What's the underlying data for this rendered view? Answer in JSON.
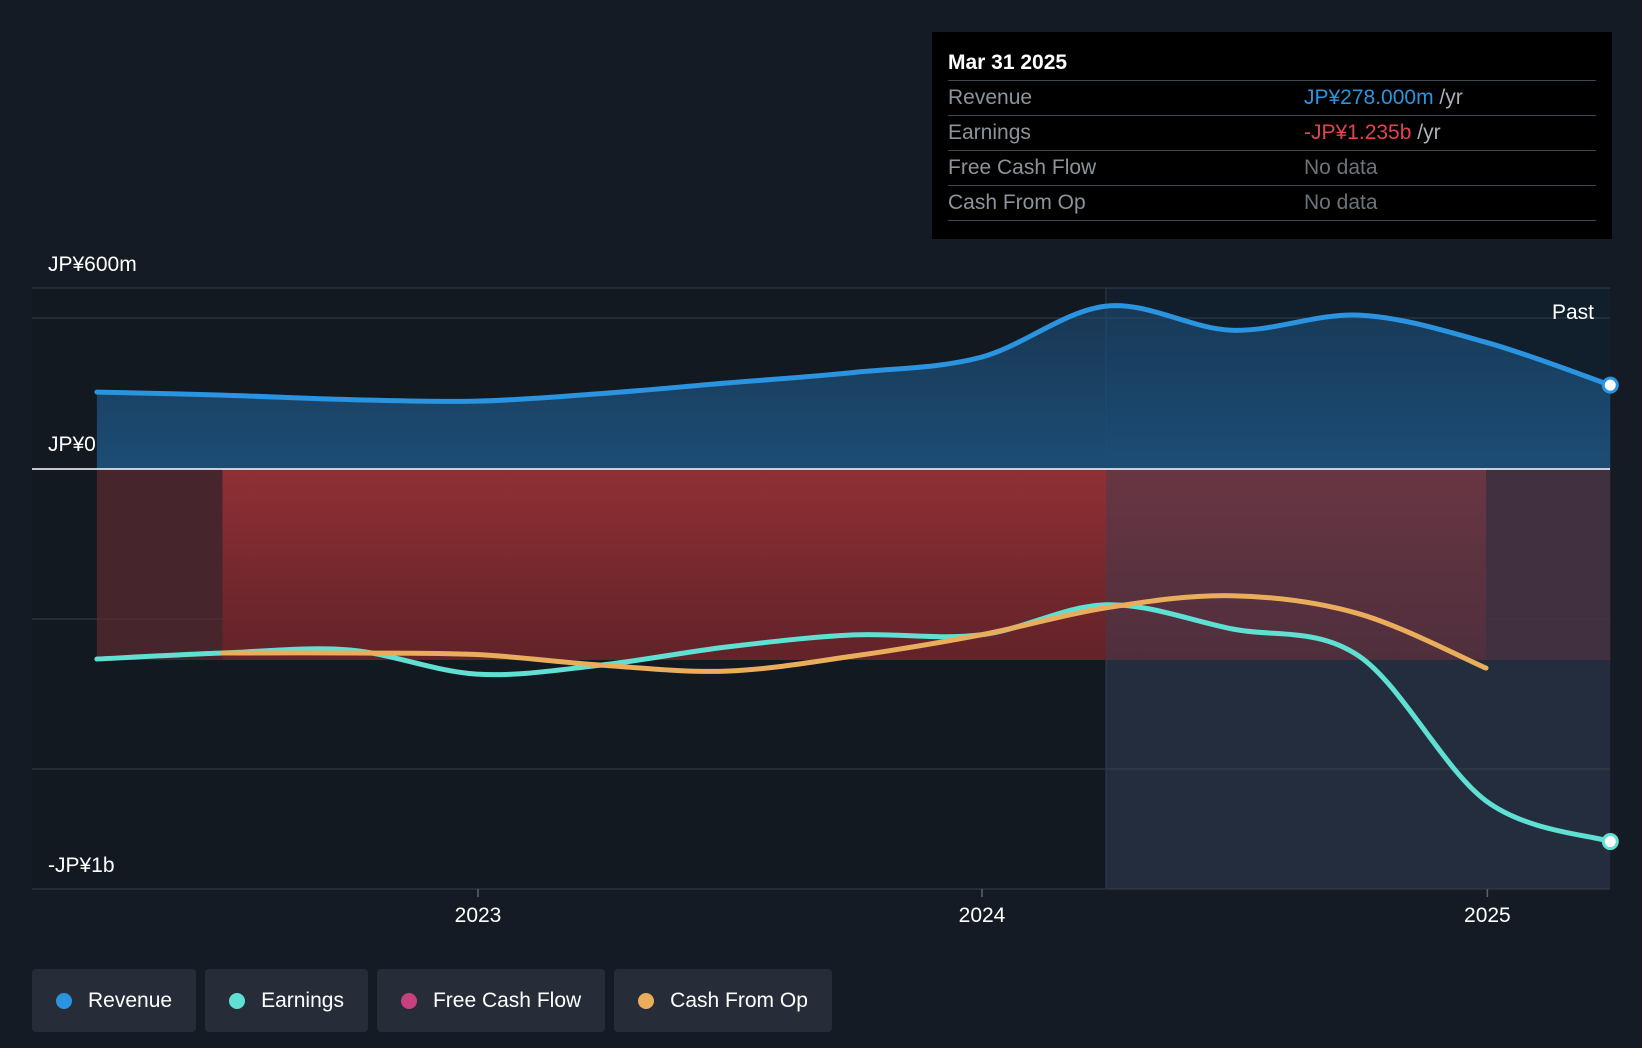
{
  "tooltip": {
    "date": "Mar 31 2025",
    "rows": [
      {
        "label": "Revenue",
        "value": "JP¥278.000m",
        "unit": "/yr",
        "color": "#2b94e0"
      },
      {
        "label": "Earnings",
        "value": "-JP¥1.235b",
        "unit": "/yr",
        "color": "#e5434b"
      },
      {
        "label": "Free Cash Flow",
        "value": "No data",
        "unit": "",
        "color": "#6c737b"
      },
      {
        "label": "Cash From Op",
        "value": "No data",
        "unit": "",
        "color": "#6c737b"
      }
    ]
  },
  "legend": [
    {
      "label": "Revenue",
      "color": "#2b94e0"
    },
    {
      "label": "Earnings",
      "color": "#5fe0d2"
    },
    {
      "label": "Free Cash Flow",
      "color": "#c5417f"
    },
    {
      "label": "Cash From Op",
      "color": "#e9ad5c"
    }
  ],
  "chart_data": {
    "type": "area",
    "y_tick_labels": [
      "JP¥600m",
      "JP¥0",
      "-JP¥1b"
    ],
    "x_tick_labels": [
      "2023",
      "2024",
      "2025"
    ],
    "past_label": "Past",
    "ylim": [
      -1400,
      600
    ],
    "series": [
      {
        "name": "Revenue",
        "color": "#2b94e0",
        "x": [
          "2022-03-31",
          "2022-06-30",
          "2022-09-30",
          "2022-12-31",
          "2023-03-31",
          "2023-06-30",
          "2023-09-30",
          "2023-12-31",
          "2024-03-31",
          "2024-06-30",
          "2024-09-30",
          "2024-12-31",
          "2025-03-31"
        ],
        "values": [
          255,
          245,
          230,
          225,
          250,
          285,
          320,
          370,
          540,
          460,
          510,
          420,
          278
        ]
      },
      {
        "name": "Earnings",
        "color": "#5fe0d2",
        "x": [
          "2022-03-31",
          "2022-06-30",
          "2022-09-30",
          "2022-12-31",
          "2023-03-31",
          "2023-06-30",
          "2023-09-30",
          "2023-12-31",
          "2024-03-31",
          "2024-06-30",
          "2024-09-30",
          "2024-12-31",
          "2025-03-31"
        ],
        "values": [
          -630,
          -610,
          -600,
          -680,
          -650,
          -590,
          -550,
          -550,
          -450,
          -530,
          -620,
          -1100,
          -1235
        ]
      },
      {
        "name": "Cash From Op",
        "color": "#e9ad5c",
        "x": [
          "2022-06-30",
          "2022-09-30",
          "2022-12-31",
          "2023-03-31",
          "2023-06-30",
          "2023-09-30",
          "2023-12-31",
          "2024-03-31",
          "2024-06-30",
          "2024-09-30",
          "2024-12-31"
        ],
        "values": [
          -610,
          -610,
          -615,
          -650,
          -670,
          -620,
          -550,
          -460,
          -420,
          -480,
          -660
        ]
      },
      {
        "name": "Free Cash Flow",
        "color": "#c5417f",
        "x": [],
        "values": []
      }
    ]
  }
}
